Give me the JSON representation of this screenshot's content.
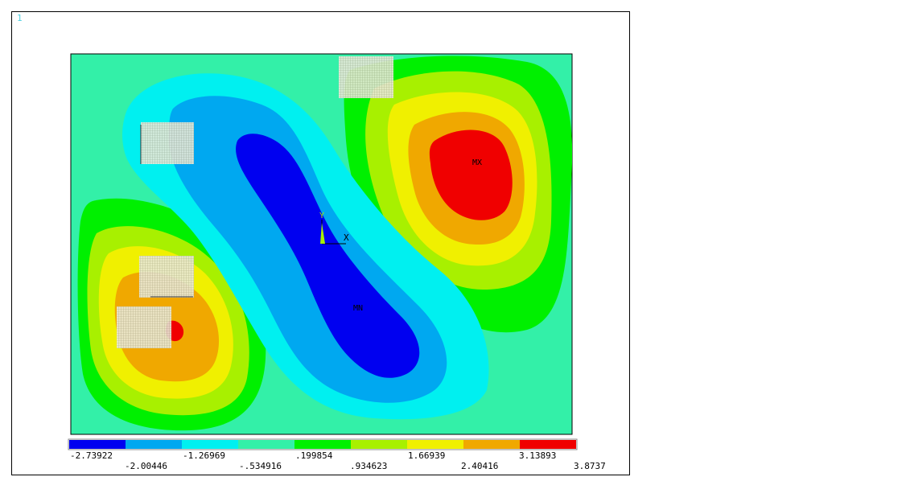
{
  "window_number": "1",
  "plot_labels": {
    "max": "MX",
    "min": "MN"
  },
  "triad": {
    "x_label": "X",
    "y_label": "Y"
  },
  "colors": {
    "background": "#33f0a8",
    "band_colors": [
      "#0000f0",
      "#00a8f0",
      "#00f0f0",
      "#33f0a8",
      "#00f000",
      "#a8f000",
      "#f0f000",
      "#f0a800",
      "#f00000"
    ],
    "mesh_patch": "#d8d8c0"
  },
  "legend": {
    "colors": [
      "#0000f0",
      "#00a8f0",
      "#00f0f0",
      "#33f0a8",
      "#00f000",
      "#a8f000",
      "#f0f000",
      "#f0a800",
      "#f00000"
    ],
    "top_labels": [
      "-2.73922",
      "-1.26969",
      ".199854",
      "1.66939",
      "3.13893"
    ],
    "bottom_labels": [
      "-2.00446",
      "-.534916",
      ".934623",
      "2.40416",
      "3.8737"
    ]
  }
}
